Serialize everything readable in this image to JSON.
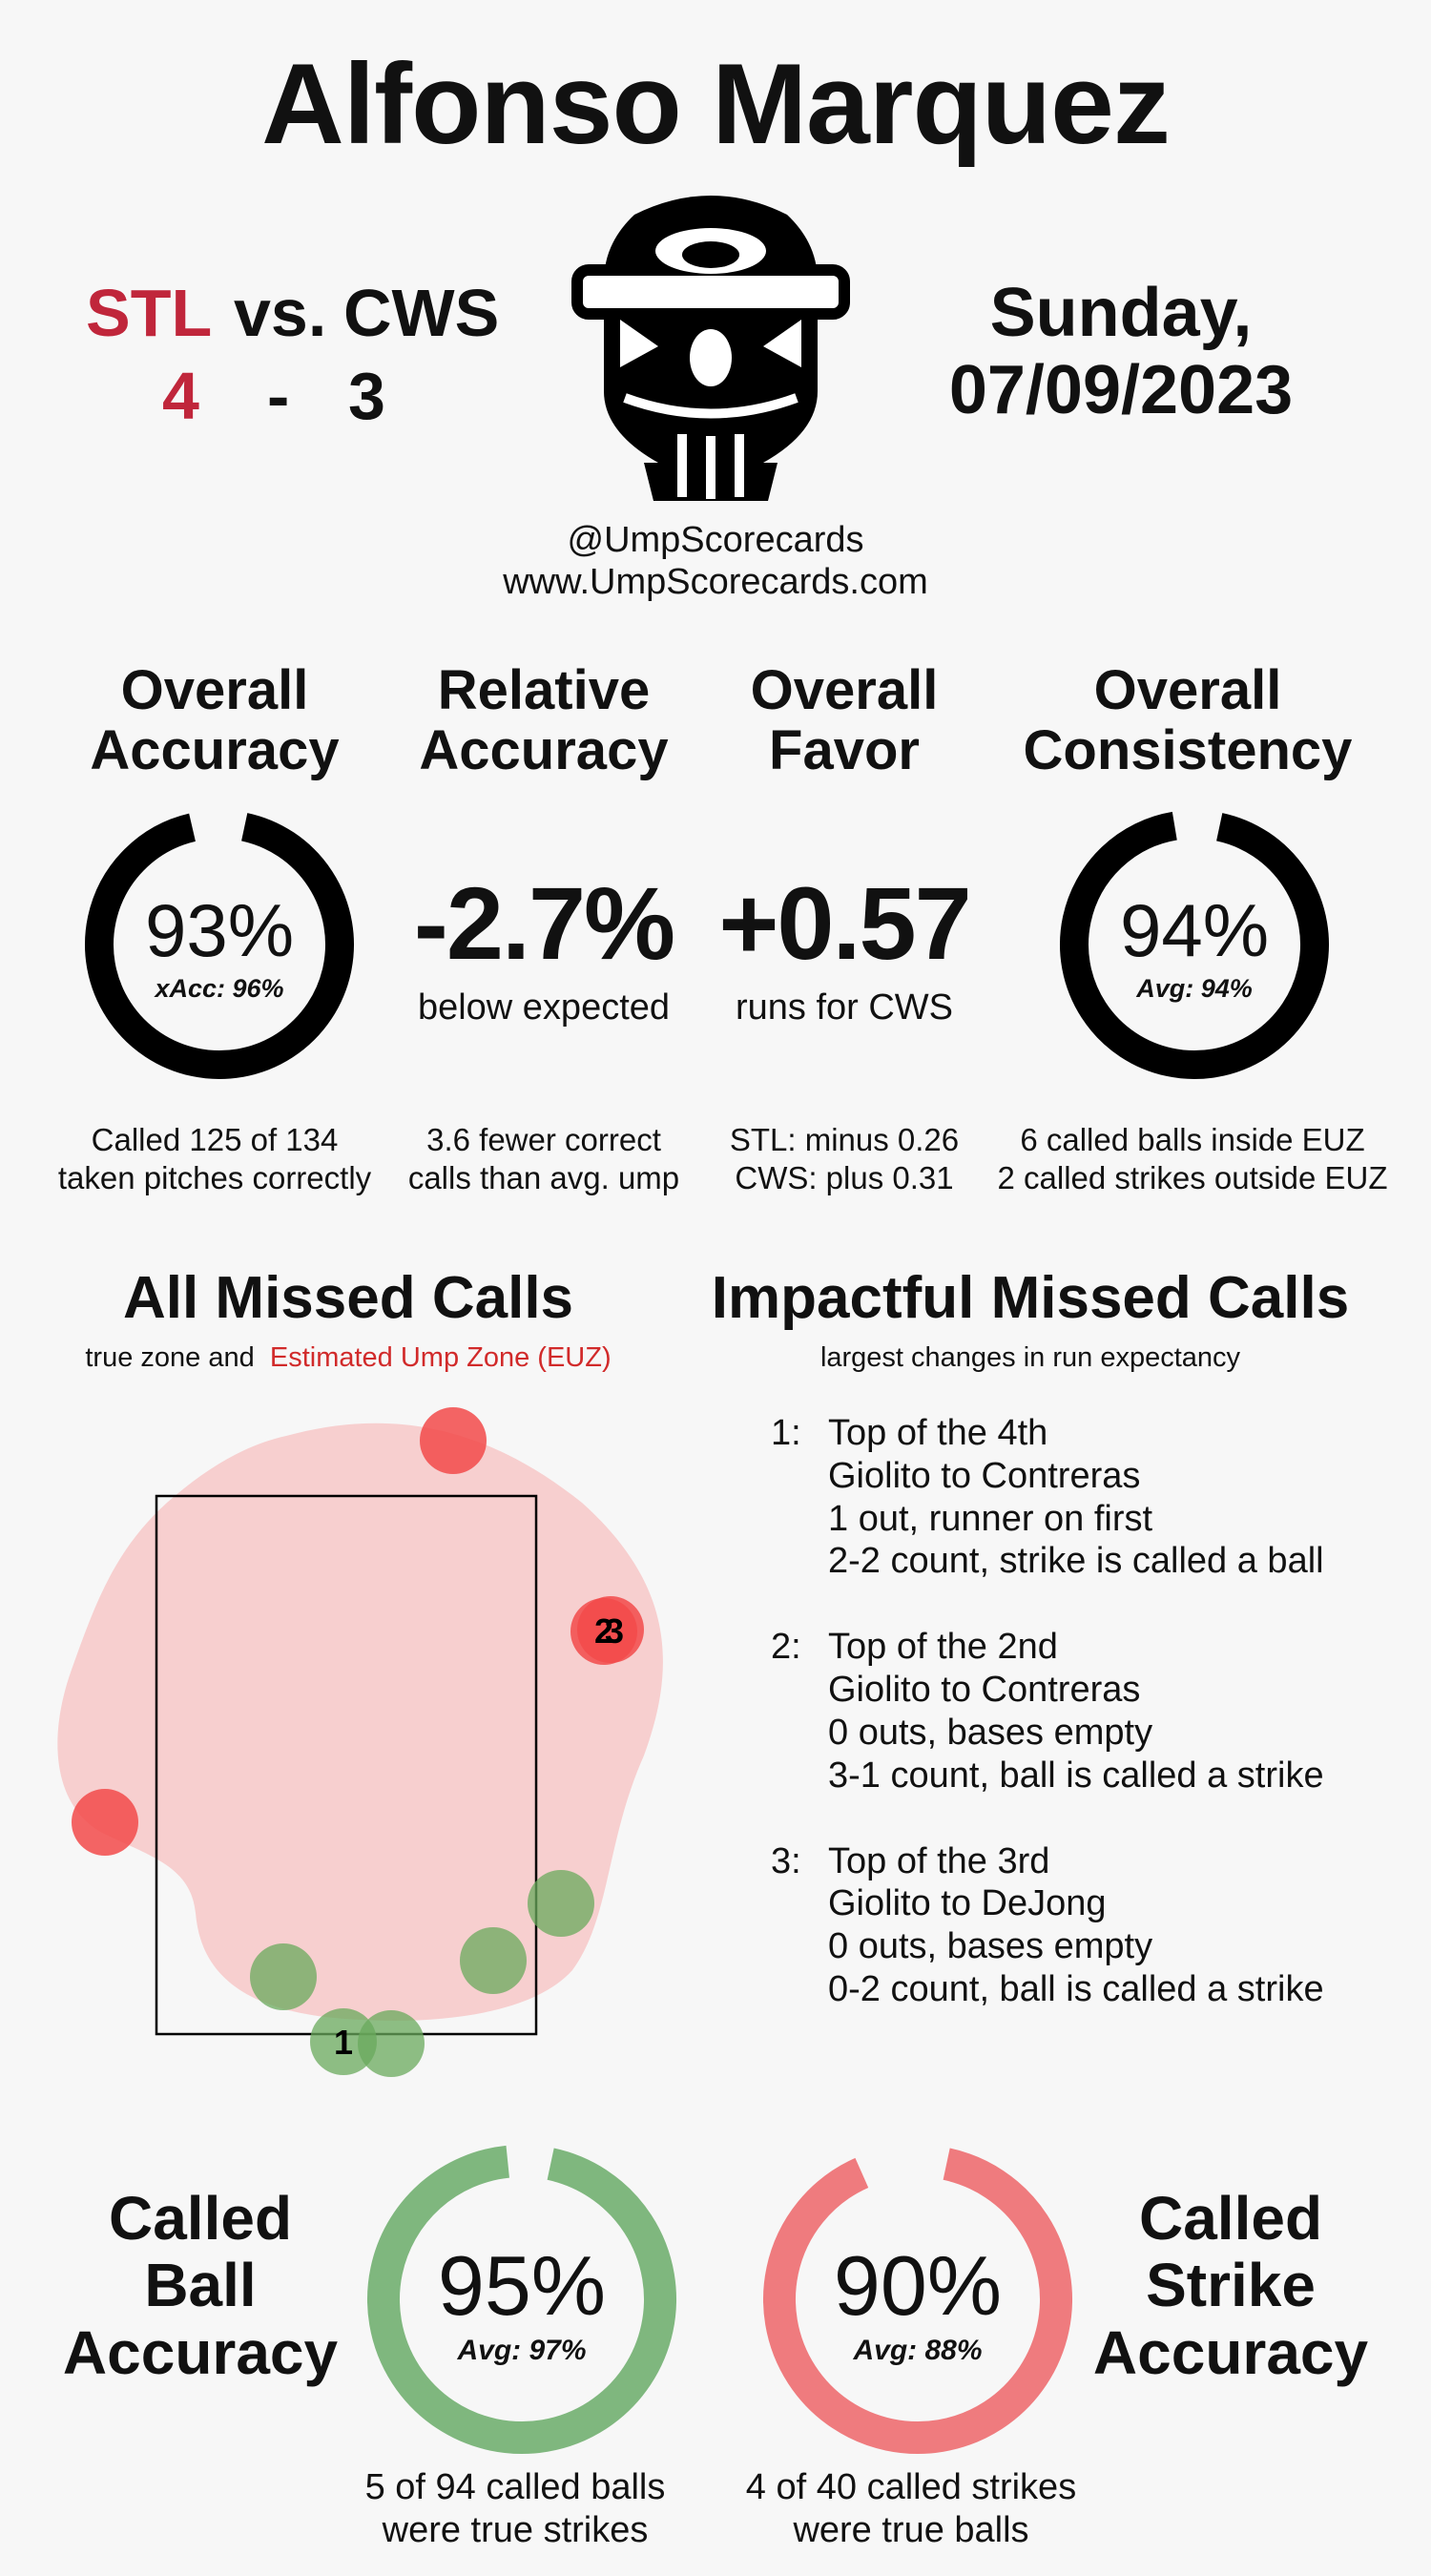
{
  "header": {
    "umpire_name": "Alfonso Marquez",
    "away_team": "STL",
    "vs_label": "vs.",
    "home_team": "CWS",
    "away_score": "4",
    "score_sep": "-",
    "home_score": "3",
    "date_line1": "Sunday,",
    "date_line2": "07/09/2023",
    "handle": "@UmpScorecards",
    "website": "www.UmpScorecards.com"
  },
  "stats": {
    "overall_accuracy": {
      "title1": "Overall",
      "title2": "Accuracy",
      "value": "93%",
      "sub": "xAcc: 96%",
      "fraction": 0.93,
      "foot1": "Called 125 of 134",
      "foot2": "taken pitches correctly"
    },
    "relative_accuracy": {
      "title1": "Relative",
      "title2": "Accuracy",
      "value": "-2.7%",
      "sub": "below expected",
      "foot1": "3.6 fewer correct",
      "foot2": "calls than avg. ump"
    },
    "overall_favor": {
      "title1": "Overall",
      "title2": "Favor",
      "value": "+0.57",
      "sub": "runs for CWS",
      "foot1": "STL: minus 0.26",
      "foot2": "CWS: plus 0.31"
    },
    "overall_consistency": {
      "title1": "Overall",
      "title2": "Consistency",
      "value": "94%",
      "sub": "Avg: 94%",
      "fraction": 0.94,
      "foot1": "6 called balls inside EUZ",
      "foot2": "2 called strikes outside EUZ"
    }
  },
  "missed_calls": {
    "title": "All Missed Calls",
    "sub_prefix": "true zone and",
    "sub_euz": "Estimated Ump Zone (EUZ)",
    "labels": [
      "1",
      "2",
      "3"
    ]
  },
  "impactful": {
    "title": "Impactful Missed Calls",
    "sub": "largest changes in run expectancy",
    "calls": [
      {
        "num": "1:",
        "inning": "Top of the 4th",
        "matchup": "Giolito to Contreras",
        "situation": "1 out, runner on first",
        "call": "2-2 count, strike is called a ball"
      },
      {
        "num": "2:",
        "inning": "Top of the 2nd",
        "matchup": "Giolito to Contreras",
        "situation": "0 outs, bases empty",
        "call": "3-1 count, ball is called a strike"
      },
      {
        "num": "3:",
        "inning": "Top of the 3rd",
        "matchup": "Giolito to DeJong",
        "situation": "0 outs, bases empty",
        "call": "0-2 count, ball is called a strike"
      }
    ]
  },
  "called_ball": {
    "title1": "Called",
    "title2": "Ball",
    "title3": "Accuracy",
    "value": "95%",
    "avg": "Avg: 97%",
    "fraction": 0.95,
    "color": "#7fb77e",
    "foot1": "5 of 94 called balls",
    "foot2": "were true strikes"
  },
  "called_strike": {
    "title1": "Called",
    "title2": "Strike",
    "title3": "Accuracy",
    "value": "90%",
    "avg": "Avg: 88%",
    "fraction": 0.9,
    "color": "#ef7b7e",
    "foot1": "4 of 40 called strikes",
    "foot2": "were true balls"
  },
  "colors": {
    "accent_red": "#c0263b",
    "euz_fill": "#f7cfcf",
    "miss_strike": "#f24a4a",
    "miss_ball": "#6aaa5c"
  }
}
